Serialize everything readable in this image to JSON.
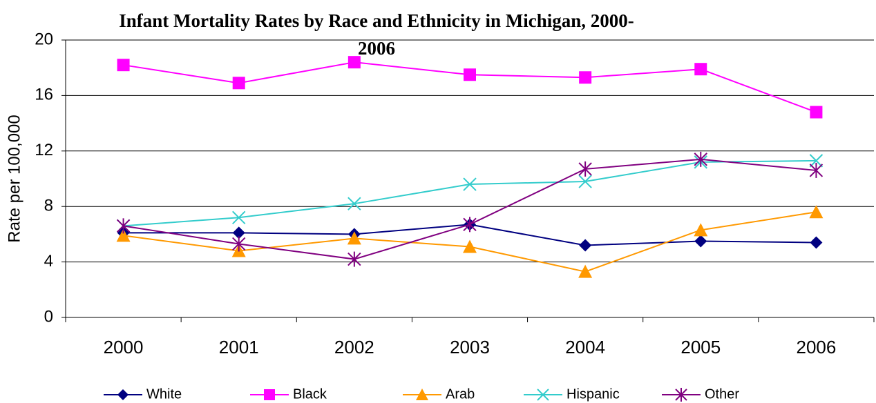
{
  "chart_data": {
    "type": "line",
    "title": "Infant Mortality Rates by Race and Ethnicity in Michigan, 2000-2006",
    "y_label": "Rate per 100,000",
    "categories": [
      "2000",
      "2001",
      "2002",
      "2003",
      "2004",
      "2005",
      "2006"
    ],
    "series": [
      {
        "name": "White",
        "color": "#000080",
        "marker": "diamond",
        "values": [
          6.1,
          6.1,
          6.0,
          6.7,
          5.2,
          5.5,
          5.4
        ]
      },
      {
        "name": "Black",
        "color": "#ff00ff",
        "marker": "square",
        "values": [
          18.2,
          16.9,
          18.4,
          17.5,
          17.3,
          17.9,
          14.8
        ]
      },
      {
        "name": "Arab",
        "color": "#ff9900",
        "marker": "triangle",
        "values": [
          5.9,
          4.8,
          5.7,
          5.1,
          3.3,
          6.3,
          7.6
        ]
      },
      {
        "name": "Hispanic",
        "color": "#33cccc",
        "marker": "x",
        "values": [
          6.6,
          7.2,
          8.2,
          9.6,
          9.8,
          11.2,
          11.3
        ]
      },
      {
        "name": "Other",
        "color": "#800080",
        "marker": "star",
        "values": [
          6.6,
          5.3,
          4.2,
          6.7,
          10.7,
          11.4,
          10.6
        ]
      }
    ],
    "ylim": [
      0,
      20
    ],
    "yticks": [
      0,
      4,
      8,
      12,
      16,
      20
    ],
    "grid": true,
    "legend": "bottom"
  }
}
